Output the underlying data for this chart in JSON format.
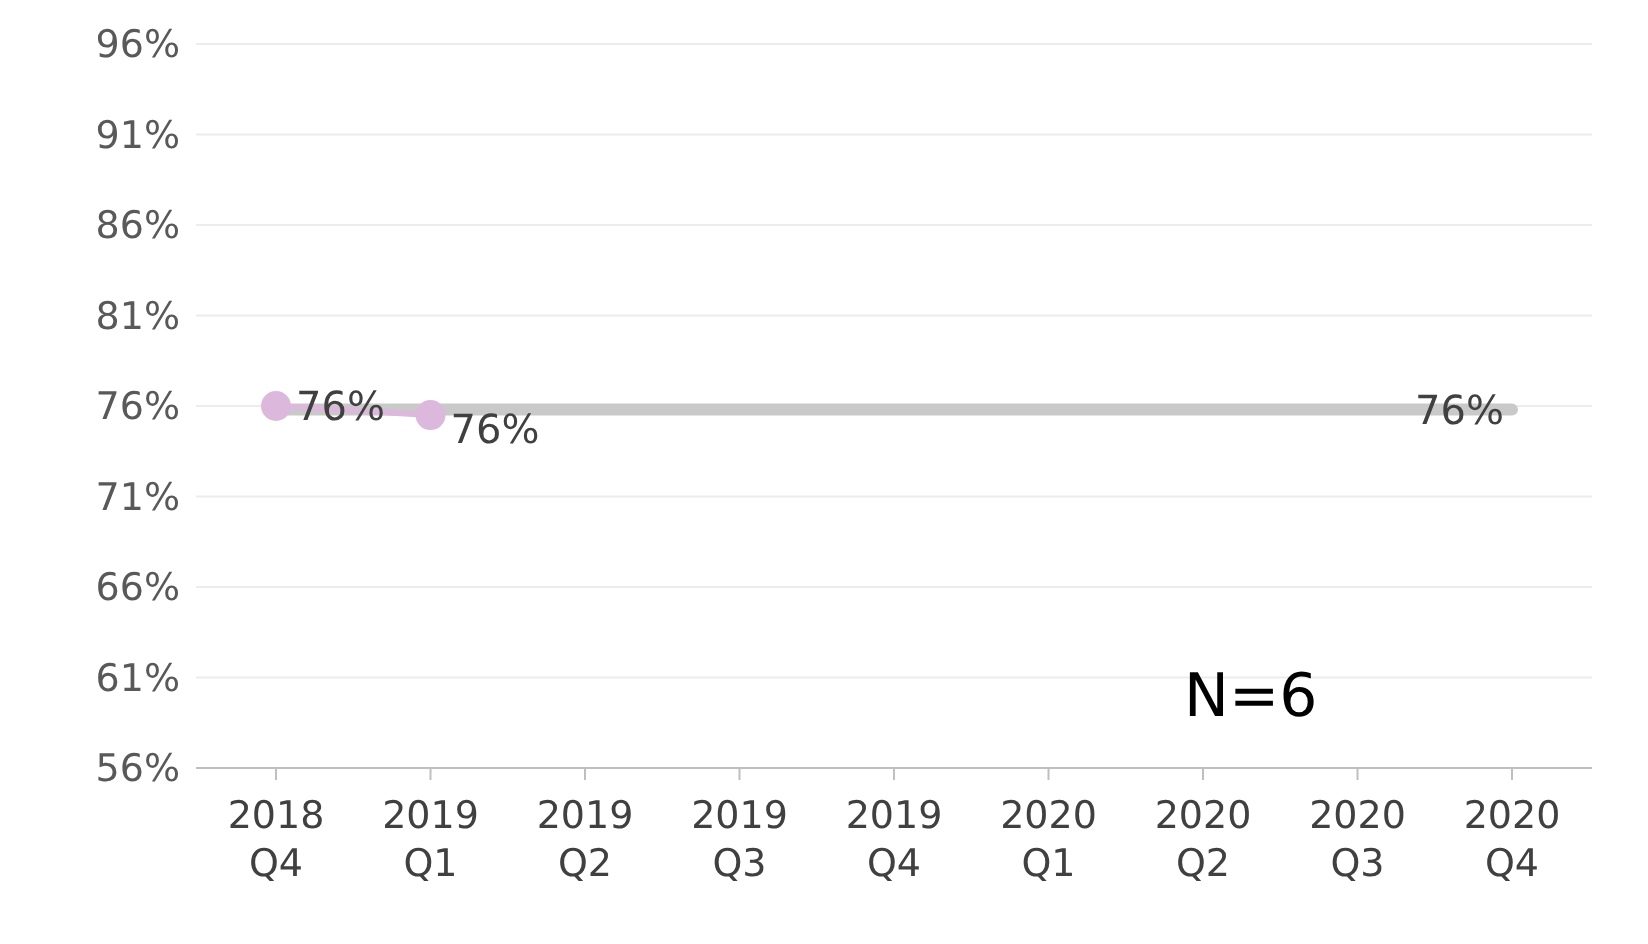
{
  "chart_data": {
    "type": "line",
    "categories": [
      "2018 Q4",
      "2019 Q1",
      "2019 Q2",
      "2019 Q3",
      "2019 Q4",
      "2020 Q1",
      "2020 Q2",
      "2020 Q3",
      "2020 Q4"
    ],
    "series": [
      {
        "color": "#c9c9c9",
        "marker": "none",
        "values": [
          75.8,
          75.8,
          75.8,
          75.8,
          75.8,
          75.8,
          75.8,
          75.8,
          75.8
        ],
        "value_labels": [
          null,
          null,
          null,
          null,
          null,
          null,
          null,
          null,
          "76%"
        ]
      },
      {
        "color": "#dcb8dd",
        "marker": "circle",
        "values": [
          76,
          75.5,
          null,
          null,
          null,
          null,
          null,
          null,
          null
        ],
        "value_labels": [
          "76%",
          "76%",
          null,
          null,
          null,
          null,
          null,
          null,
          null
        ]
      }
    ],
    "ylim": [
      56,
      96
    ],
    "yticks": [
      {
        "value": 56,
        "label": "56%"
      },
      {
        "value": 61,
        "label": "61%"
      },
      {
        "value": 66,
        "label": "66%"
      },
      {
        "value": 71,
        "label": "71%"
      },
      {
        "value": 76,
        "label": "76%"
      },
      {
        "value": 81,
        "label": "81%"
      },
      {
        "value": 86,
        "label": "86%"
      },
      {
        "value": 91,
        "label": "91%"
      },
      {
        "value": 96,
        "label": "96%"
      }
    ],
    "grid": "y",
    "legend": false,
    "annotations": [
      "N=6"
    ]
  }
}
